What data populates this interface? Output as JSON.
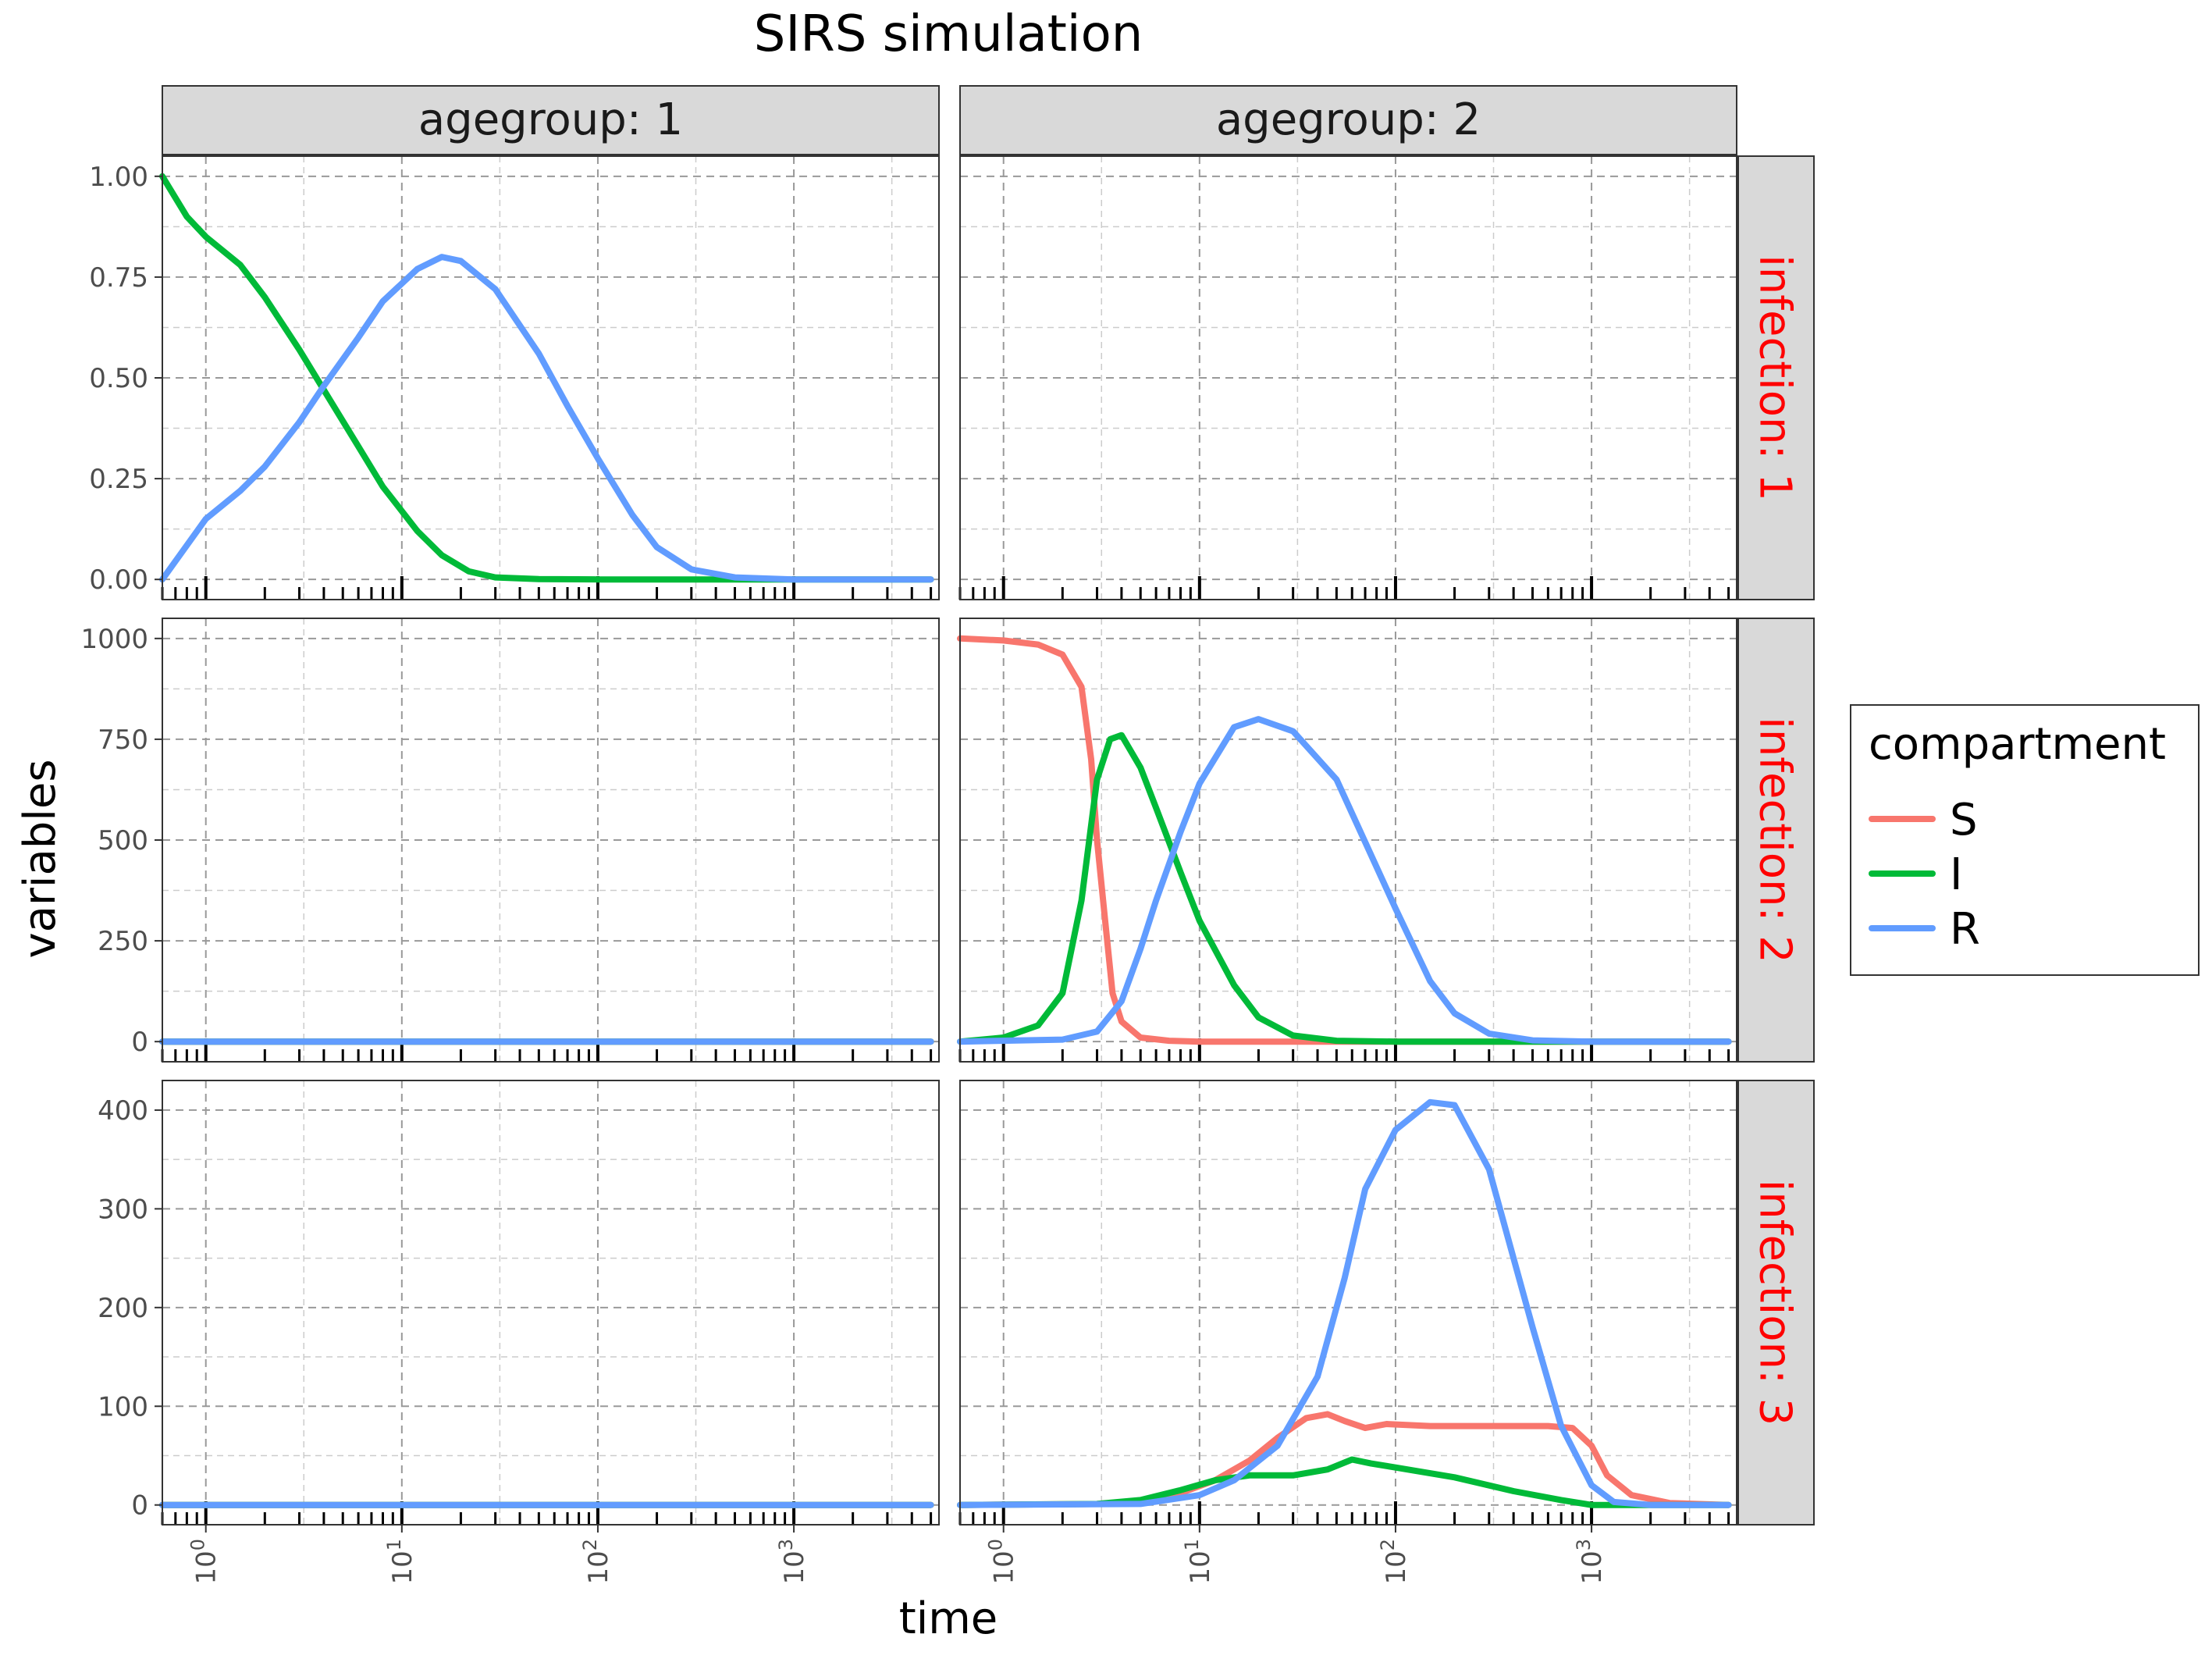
{
  "chart_data": {
    "type": "line",
    "title": "SIRS simulation",
    "xlabel": "time",
    "ylabel": "variables",
    "x_scale": "log10",
    "xlim": [
      0.6,
      5500
    ],
    "x_ticks": [
      {
        "value": 1,
        "base": "10",
        "exp": "0"
      },
      {
        "value": 10,
        "base": "10",
        "exp": "1"
      },
      {
        "value": 100,
        "base": "10",
        "exp": "2"
      },
      {
        "value": 1000,
        "base": "10",
        "exp": "3"
      }
    ],
    "grid": true,
    "legend": {
      "title": "compartment",
      "position": "right",
      "entries": [
        {
          "name": "S",
          "color": "#F8766D"
        },
        {
          "name": "I",
          "color": "#00BA38"
        },
        {
          "name": "R",
          "color": "#619CFF"
        }
      ]
    },
    "col_strips": [
      "agegroup: 1",
      "agegroup: 2"
    ],
    "row_strips": [
      "infection: 1",
      "infection: 2",
      "infection: 3"
    ],
    "row_strip_color": "#FF0000",
    "rows": [
      {
        "ylim": [
          -0.05,
          1.05
        ],
        "yticks": [
          0,
          0.25,
          0.5,
          0.75,
          1
        ],
        "ytick_labels": [
          "0.00",
          "0.25",
          "0.50",
          "0.75",
          "1.00"
        ]
      },
      {
        "ylim": [
          -50,
          1050
        ],
        "yticks": [
          0,
          250,
          500,
          750,
          1000
        ],
        "ytick_labels": [
          "0",
          "250",
          "500",
          "750",
          "1000"
        ]
      },
      {
        "ylim": [
          -20,
          430
        ],
        "yticks": [
          0,
          100,
          200,
          300,
          400
        ],
        "ytick_labels": [
          "0",
          "100",
          "200",
          "300",
          "400"
        ]
      }
    ],
    "panels": [
      {
        "row": 0,
        "col": 0,
        "series": [
          {
            "name": "I",
            "points": [
              [
                0.6,
                1.0
              ],
              [
                0.8,
                0.9
              ],
              [
                1,
                0.85
              ],
              [
                1.5,
                0.78
              ],
              [
                2,
                0.7
              ],
              [
                3,
                0.57
              ],
              [
                4,
                0.47
              ],
              [
                6,
                0.33
              ],
              [
                8,
                0.23
              ],
              [
                12,
                0.12
              ],
              [
                16,
                0.06
              ],
              [
                22,
                0.02
              ],
              [
                30,
                0.005
              ],
              [
                50,
                0.001
              ],
              [
                100,
                0
              ],
              [
                5000,
                0
              ]
            ]
          },
          {
            "name": "R",
            "points": [
              [
                0.6,
                0.0
              ],
              [
                1,
                0.15
              ],
              [
                1.5,
                0.22
              ],
              [
                2,
                0.28
              ],
              [
                3,
                0.39
              ],
              [
                4,
                0.48
              ],
              [
                6,
                0.6
              ],
              [
                8,
                0.69
              ],
              [
                12,
                0.77
              ],
              [
                16,
                0.8
              ],
              [
                20,
                0.79
              ],
              [
                30,
                0.72
              ],
              [
                50,
                0.56
              ],
              [
                70,
                0.43
              ],
              [
                100,
                0.3
              ],
              [
                150,
                0.16
              ],
              [
                200,
                0.08
              ],
              [
                300,
                0.025
              ],
              [
                500,
                0.005
              ],
              [
                1000,
                0.0
              ],
              [
                5000,
                0.0
              ]
            ]
          }
        ]
      },
      {
        "row": 0,
        "col": 1,
        "series": []
      },
      {
        "row": 1,
        "col": 0,
        "series": [
          {
            "name": "S",
            "points": [
              [
                0.6,
                0
              ],
              [
                5000,
                0
              ]
            ]
          },
          {
            "name": "I",
            "points": [
              [
                0.6,
                0
              ],
              [
                5000,
                0
              ]
            ]
          },
          {
            "name": "R",
            "points": [
              [
                0.6,
                0
              ],
              [
                5000,
                0
              ]
            ]
          }
        ]
      },
      {
        "row": 1,
        "col": 1,
        "series": [
          {
            "name": "S",
            "points": [
              [
                0.6,
                1000
              ],
              [
                1,
                995
              ],
              [
                1.5,
                985
              ],
              [
                2,
                960
              ],
              [
                2.5,
                880
              ],
              [
                2.8,
                700
              ],
              [
                3,
                500
              ],
              [
                3.3,
                300
              ],
              [
                3.6,
                120
              ],
              [
                4,
                50
              ],
              [
                5,
                10
              ],
              [
                7,
                2
              ],
              [
                10,
                0
              ],
              [
                5000,
                0
              ]
            ]
          },
          {
            "name": "I",
            "points": [
              [
                0.6,
                0
              ],
              [
                1,
                10
              ],
              [
                1.5,
                40
              ],
              [
                2,
                120
              ],
              [
                2.5,
                350
              ],
              [
                3,
                650
              ],
              [
                3.5,
                750
              ],
              [
                4,
                760
              ],
              [
                5,
                680
              ],
              [
                6,
                580
              ],
              [
                8,
                420
              ],
              [
                10,
                300
              ],
              [
                15,
                140
              ],
              [
                20,
                60
              ],
              [
                30,
                15
              ],
              [
                50,
                2
              ],
              [
                100,
                0
              ],
              [
                5000,
                0
              ]
            ]
          },
          {
            "name": "R",
            "points": [
              [
                0.6,
                0
              ],
              [
                2,
                5
              ],
              [
                3,
                25
              ],
              [
                4,
                100
              ],
              [
                5,
                230
              ],
              [
                6,
                350
              ],
              [
                8,
                520
              ],
              [
                10,
                640
              ],
              [
                15,
                780
              ],
              [
                20,
                800
              ],
              [
                30,
                770
              ],
              [
                50,
                650
              ],
              [
                100,
                330
              ],
              [
                150,
                150
              ],
              [
                200,
                70
              ],
              [
                300,
                20
              ],
              [
                500,
                3
              ],
              [
                1000,
                0
              ],
              [
                5000,
                0
              ]
            ]
          }
        ]
      },
      {
        "row": 2,
        "col": 0,
        "series": [
          {
            "name": "S",
            "points": [
              [
                0.6,
                0
              ],
              [
                5000,
                0
              ]
            ]
          },
          {
            "name": "I",
            "points": [
              [
                0.6,
                0
              ],
              [
                5000,
                0
              ]
            ]
          },
          {
            "name": "R",
            "points": [
              [
                0.6,
                0
              ],
              [
                5000,
                0
              ]
            ]
          }
        ]
      },
      {
        "row": 2,
        "col": 1,
        "series": [
          {
            "name": "S",
            "points": [
              [
                0.6,
                0
              ],
              [
                3,
                1
              ],
              [
                5,
                4
              ],
              [
                8,
                12
              ],
              [
                12,
                25
              ],
              [
                18,
                45
              ],
              [
                25,
                68
              ],
              [
                35,
                88
              ],
              [
                45,
                92
              ],
              [
                55,
                85
              ],
              [
                70,
                78
              ],
              [
                90,
                82
              ],
              [
                150,
                80
              ],
              [
                300,
                80
              ],
              [
                600,
                80
              ],
              [
                800,
                78
              ],
              [
                1000,
                60
              ],
              [
                1200,
                30
              ],
              [
                1600,
                10
              ],
              [
                2500,
                2
              ],
              [
                5000,
                0
              ]
            ]
          },
          {
            "name": "I",
            "points": [
              [
                0.6,
                0
              ],
              [
                3,
                1
              ],
              [
                5,
                5
              ],
              [
                8,
                15
              ],
              [
                12,
                25
              ],
              [
                18,
                30
              ],
              [
                30,
                30
              ],
              [
                45,
                36
              ],
              [
                60,
                46
              ],
              [
                75,
                42
              ],
              [
                100,
                38
              ],
              [
                200,
                28
              ],
              [
                400,
                14
              ],
              [
                700,
                5
              ],
              [
                1000,
                0
              ],
              [
                5000,
                0
              ]
            ]
          },
          {
            "name": "R",
            "points": [
              [
                0.6,
                0
              ],
              [
                5,
                1
              ],
              [
                10,
                10
              ],
              [
                15,
                25
              ],
              [
                25,
                60
              ],
              [
                40,
                130
              ],
              [
                55,
                230
              ],
              [
                70,
                320
              ],
              [
                100,
                380
              ],
              [
                150,
                408
              ],
              [
                200,
                405
              ],
              [
                300,
                340
              ],
              [
                500,
                180
              ],
              [
                700,
                80
              ],
              [
                1000,
                20
              ],
              [
                1300,
                3
              ],
              [
                2000,
                0
              ],
              [
                5000,
                0
              ]
            ]
          }
        ]
      }
    ]
  }
}
